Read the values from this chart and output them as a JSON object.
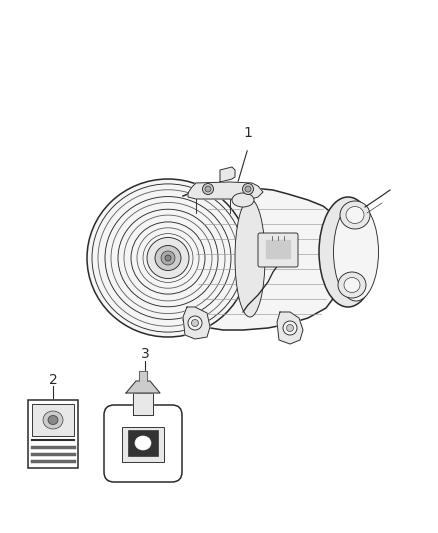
{
  "bg_color": "#ffffff",
  "lc": "#2a2a2a",
  "lc_light": "#666666",
  "lc_mid": "#999999",
  "fill_light": "#f5f5f5",
  "fill_mid": "#e8e8e8",
  "fill_dark": "#cccccc",
  "label1": "1",
  "label2": "2",
  "label3": "3",
  "figsize": [
    4.38,
    5.33
  ],
  "dpi": 100,
  "lw_main": 1.1,
  "lw_thin": 0.65,
  "lw_xtra": 0.45
}
